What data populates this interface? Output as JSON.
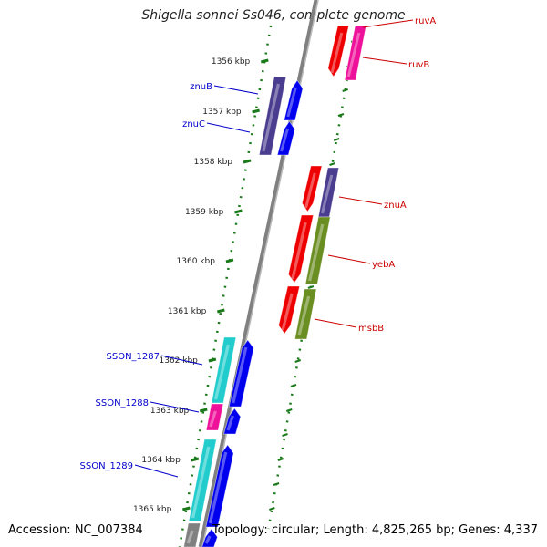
{
  "title": "Shigella sonnei Ss046, complete genome",
  "accession": "Accession: NC_007384",
  "summary": "Topology: circular; Length: 4,825,265 bp; Genes: 4,337",
  "colors": {
    "backbone": "#808080",
    "tick": "#1a7a1a",
    "label_forward": "#0000cc",
    "label_reverse": "#cc0000",
    "blue": "#0000ee",
    "red": "#ee0000",
    "magenta": "#ee1199",
    "purple": "#4a3d8f",
    "olive": "#6b8e23",
    "cyan": "#22cccc",
    "gray": "#808080"
  },
  "ticks": [
    "1356 kbp",
    "1357 kbp",
    "1358 kbp",
    "1359 kbp",
    "1360 kbp",
    "1361 kbp",
    "1362 kbp",
    "1363 kbp",
    "1364 kbp",
    "1365 kbp"
  ],
  "genes_forward": [
    {
      "name": "znuB",
      "color": "purple"
    },
    {
      "name": "znuC",
      "color": "purple"
    },
    {
      "name": "SSON_1287",
      "color": "cyan"
    },
    {
      "name": "SSON_1288",
      "color": "magenta"
    },
    {
      "name": "SSON_1289",
      "color": "cyan"
    }
  ],
  "genes_reverse": [
    {
      "name": "ruvA",
      "color": "red"
    },
    {
      "name": "ruvB",
      "color": "magenta"
    },
    {
      "name": "znuA",
      "color": "purple"
    },
    {
      "name": "yebA",
      "color": "olive"
    },
    {
      "name": "msbB",
      "color": "olive"
    }
  ]
}
